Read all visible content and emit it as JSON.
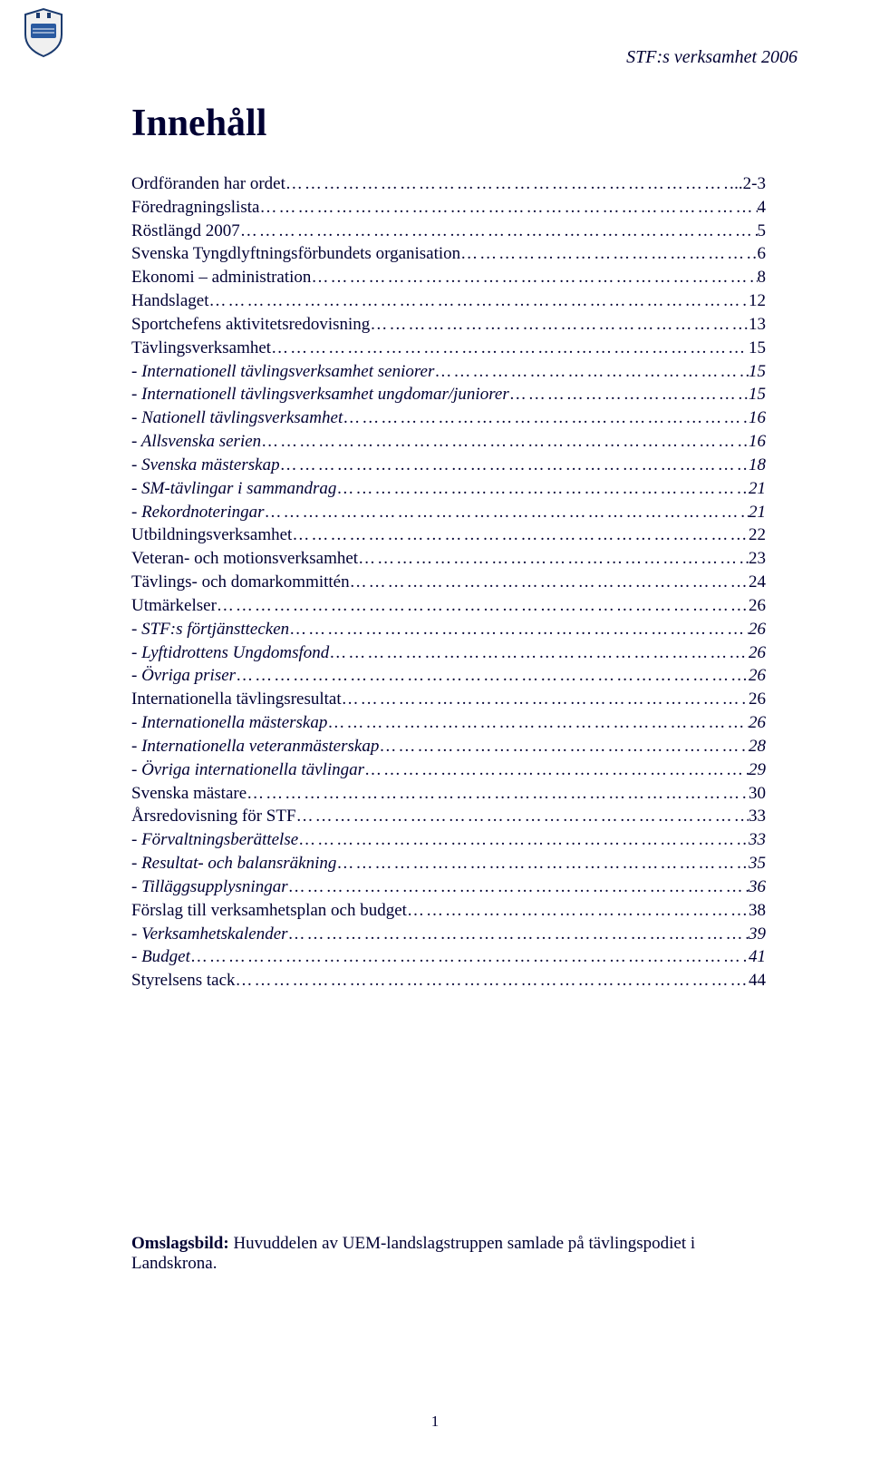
{
  "header_right": "STF:s verksamhet 2006",
  "title": "Innehåll",
  "toc": [
    {
      "label": "Ordföranden har ordet",
      "page": "..2-3",
      "sub": false
    },
    {
      "label": "Föredragningslista",
      "page": "4",
      "sub": false
    },
    {
      "label": "Röstlängd 2007",
      "page": "5",
      "sub": false
    },
    {
      "label": "Svenska Tyngdlyftningsförbundets organisation",
      "page": "6",
      "sub": false
    },
    {
      "label": "Ekonomi – administration",
      "page": "8",
      "sub": false
    },
    {
      "label": "Handslaget",
      "page": "12",
      "sub": false
    },
    {
      "label": "Sportchefens aktivitetsredovisning",
      "page": "13",
      "sub": false
    },
    {
      "label": "Tävlingsverksamhet",
      "page": "15",
      "sub": false
    },
    {
      "label": "- Internationell tävlingsverksamhet seniorer",
      "page": "15",
      "sub": true
    },
    {
      "label": "- Internationell tävlingsverksamhet ungdomar/juniorer",
      "page": "15",
      "sub": true
    },
    {
      "label": "- Nationell tävlingsverksamhet",
      "page": "16",
      "sub": true
    },
    {
      "label": "- Allsvenska serien",
      "page": "16",
      "sub": true
    },
    {
      "label": "- Svenska mästerskap",
      "page": "18",
      "sub": true
    },
    {
      "label": "- SM-tävlingar i sammandrag",
      "page": "21",
      "sub": true
    },
    {
      "label": "- Rekordnoteringar",
      "page": "21",
      "sub": true
    },
    {
      "label": "Utbildningsverksamhet",
      "page": "22",
      "sub": false
    },
    {
      "label": "Veteran- och motionsverksamhet",
      "page": "23",
      "sub": false
    },
    {
      "label": "Tävlings- och domarkommittén",
      "page": "24",
      "sub": false
    },
    {
      "label": "Utmärkelser",
      "page": "26",
      "sub": false
    },
    {
      "label": "- STF:s förtjänsttecken",
      "page": "26",
      "sub": true
    },
    {
      "label": "- Lyftidrottens Ungdomsfond",
      "page": "26",
      "sub": true
    },
    {
      "label": "- Övriga priser",
      "page": "26",
      "sub": true
    },
    {
      "label": "Internationella tävlingsresultat",
      "page": "26",
      "sub": false
    },
    {
      "label": "- Internationella mästerskap",
      "page": "26",
      "sub": true
    },
    {
      "label": "- Internationella veteranmästerskap",
      "page": "28",
      "sub": true
    },
    {
      "label": "- Övriga internationella tävlingar",
      "page": "29",
      "sub": true
    },
    {
      "label": "Svenska mästare",
      "page": "30",
      "sub": false
    },
    {
      "label": "Årsredovisning för STF",
      "page": "33",
      "sub": false
    },
    {
      "label": "- Förvaltningsberättelse",
      "page": "33",
      "sub": true
    },
    {
      "label": "- Resultat- och balansräkning",
      "page": "35",
      "sub": true
    },
    {
      "label": "- Tilläggsupplysningar",
      "page": "36",
      "sub": true
    },
    {
      "label": "Förslag till verksamhetsplan och budget",
      "page": "38",
      "sub": false
    },
    {
      "label": "- Verksamhetskalender",
      "page": "39",
      "sub": true
    },
    {
      "label": "- Budget",
      "page": "41",
      "sub": true
    },
    {
      "label": "Styrelsens tack",
      "page": "44",
      "sub": false
    }
  ],
  "caption_bold": "Omslagsbild:",
  "caption_text": " Huvuddelen av UEM-landslagstruppen samlade på tävlingspodiet i Landskrona.",
  "page_number": "1",
  "colors": {
    "text": "#000033",
    "background": "#ffffff",
    "logo_stroke": "#1a3a6e",
    "logo_fill": "#2a5aa0"
  },
  "typography": {
    "body_fontsize": 19,
    "title_fontsize": 42,
    "header_fontsize": 20,
    "font_family": "Times New Roman"
  }
}
